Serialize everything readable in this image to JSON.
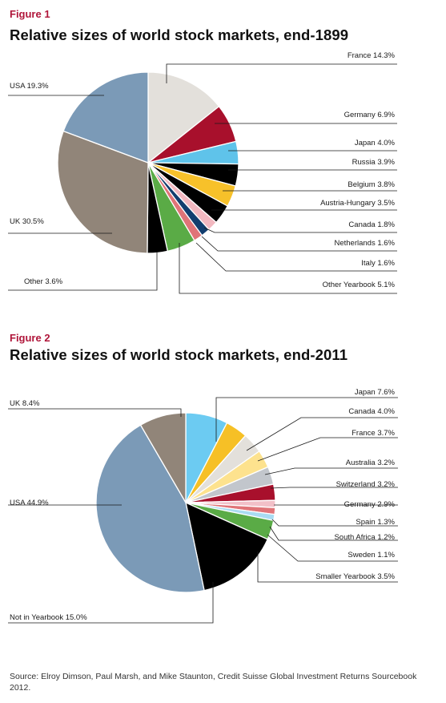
{
  "figure1": {
    "label": "Figure 1",
    "title": "Relative sizes of world stock markets, end-1899"
  },
  "figure2": {
    "label": "Figure 2",
    "title": "Relative sizes of world stock markets, end-2011"
  },
  "source": "Source: Elroy Dimson, Paul Marsh, and Mike Staunton, Credit Suisse Global Investment Returns Sourcebook 2012.",
  "chart_data": [
    {
      "type": "pie",
      "title": "Relative sizes of world stock markets, end-1899",
      "slices": [
        {
          "name": "France",
          "label": "France 14.3%",
          "value": 14.3,
          "color": "#e3e0db"
        },
        {
          "name": "Germany",
          "label": "Germany 6.9%",
          "value": 6.9,
          "color": "#a8102c"
        },
        {
          "name": "Japan",
          "label": "Japan 4.0%",
          "value": 4.0,
          "color": "#5fc3ea"
        },
        {
          "name": "Russia",
          "label": "Russia 3.9%",
          "value": 3.9,
          "color": "#000000"
        },
        {
          "name": "Belgium",
          "label": "Belgium 3.8%",
          "value": 3.8,
          "color": "#f7c12a"
        },
        {
          "name": "Austria-Hungary",
          "label": "Austria-Hungary 3.5%",
          "value": 3.5,
          "color": "#000000"
        },
        {
          "name": "Canada",
          "label": "Canada 1.8%",
          "value": 1.8,
          "color": "#f2b8c0"
        },
        {
          "name": "Netherlands",
          "label": "Netherlands 1.6%",
          "value": 1.6,
          "color": "#123d6e"
        },
        {
          "name": "Italy",
          "label": "Italy 1.6%",
          "value": 1.6,
          "color": "#e07478"
        },
        {
          "name": "Other Yearbook",
          "label": "Other Yearbook 5.1%",
          "value": 5.1,
          "color": "#5aab46"
        },
        {
          "name": "Other",
          "label": "Other 3.6%",
          "value": 3.6,
          "color": "#000000"
        },
        {
          "name": "UK",
          "label": "UK 30.5%",
          "value": 30.5,
          "color": "#918579"
        },
        {
          "name": "USA",
          "label": "USA 19.3%",
          "value": 19.3,
          "color": "#7b9ab7"
        }
      ]
    },
    {
      "type": "pie",
      "title": "Relative sizes of world stock markets, end-2011",
      "slices": [
        {
          "name": "Japan",
          "label": "Japan 7.6%",
          "value": 7.6,
          "color": "#6ccbf2"
        },
        {
          "name": "Canada",
          "label": "Canada 4.0%",
          "value": 4.0,
          "color": "#f6c026"
        },
        {
          "name": "France",
          "label": "France 3.7%",
          "value": 3.7,
          "color": "#e3e0db"
        },
        {
          "name": "Australia",
          "label": "Australia 3.2%",
          "value": 3.2,
          "color": "#fde28e"
        },
        {
          "name": "Switzerland",
          "label": "Switzerland 3.2%",
          "value": 3.2,
          "color": "#c2c6cc"
        },
        {
          "name": "Germany",
          "label": "Germany 2.9%",
          "value": 2.9,
          "color": "#a8102c"
        },
        {
          "name": "Spain",
          "label": "Spain 1.3%",
          "value": 1.3,
          "color": "#f2c0c8"
        },
        {
          "name": "South Africa",
          "label": "South Africa 1.2%",
          "value": 1.2,
          "color": "#e07478"
        },
        {
          "name": "Sweden",
          "label": "Sweden 1.1%",
          "value": 1.1,
          "color": "#a9dcf2"
        },
        {
          "name": "Smaller Yearbook",
          "label": "Smaller Yearbook 3.5%",
          "value": 3.5,
          "color": "#5aab46"
        },
        {
          "name": "Not in Yearbook",
          "label": "Not in Yearbook 15.0%",
          "value": 15.0,
          "color": "#000000"
        },
        {
          "name": "USA",
          "label": "USA 44.9%",
          "value": 44.9,
          "color": "#7b9ab7"
        },
        {
          "name": "UK",
          "label": "UK 8.4%",
          "value": 8.4,
          "color": "#918579"
        }
      ]
    }
  ]
}
